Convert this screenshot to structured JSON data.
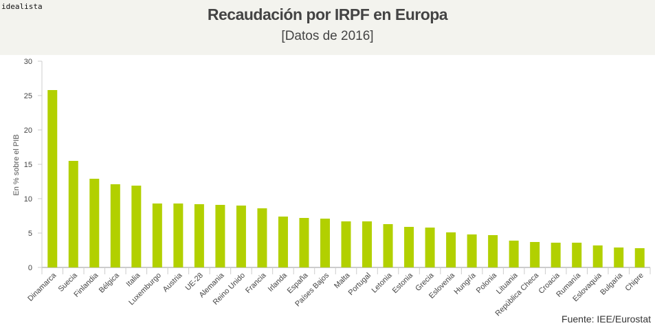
{
  "brand": "idealista",
  "title": "Recaudación por IRPF en Europa",
  "subtitle": "[Datos de 2016]",
  "source": "Fuente: IEE/Eurostat",
  "colors": {
    "bar": "#b2d000",
    "axis": "#cccccc",
    "header_bg": "#f3f3ee",
    "text": "#444444"
  },
  "chart_data": {
    "type": "bar",
    "title": "Recaudación por IRPF en Europa",
    "subtitle": "[Datos de 2016]",
    "xlabel": "",
    "ylabel": "En % sobre el PIB",
    "ylim": [
      0,
      30
    ],
    "yticks": [
      0,
      5,
      10,
      15,
      20,
      25,
      30
    ],
    "grid": false,
    "legend": "none",
    "categories": [
      "Dinamarca",
      "Suecia",
      "Finlandia",
      "Bélgica",
      "Italia",
      "Luxemburgo",
      "Austria",
      "UE-28",
      "Alemania",
      "Reino Unido",
      "Francia",
      "Irlanda",
      "España",
      "Países Bajos",
      "Malta",
      "Portugal",
      "Letonia",
      "Estonia",
      "Grecia",
      "Eslovenia",
      "Hungría",
      "Polonia",
      "Lituania",
      "República Checa",
      "Croacia",
      "Rumanía",
      "Eslovaquia",
      "Bulgaria",
      "Chipre"
    ],
    "values": [
      25.8,
      15.5,
      12.9,
      12.1,
      11.9,
      9.3,
      9.3,
      9.2,
      9.1,
      9.0,
      8.6,
      7.4,
      7.2,
      7.1,
      6.7,
      6.7,
      6.3,
      5.9,
      5.8,
      5.1,
      4.8,
      4.7,
      3.9,
      3.7,
      3.6,
      3.6,
      3.2,
      2.9,
      2.8
    ]
  }
}
